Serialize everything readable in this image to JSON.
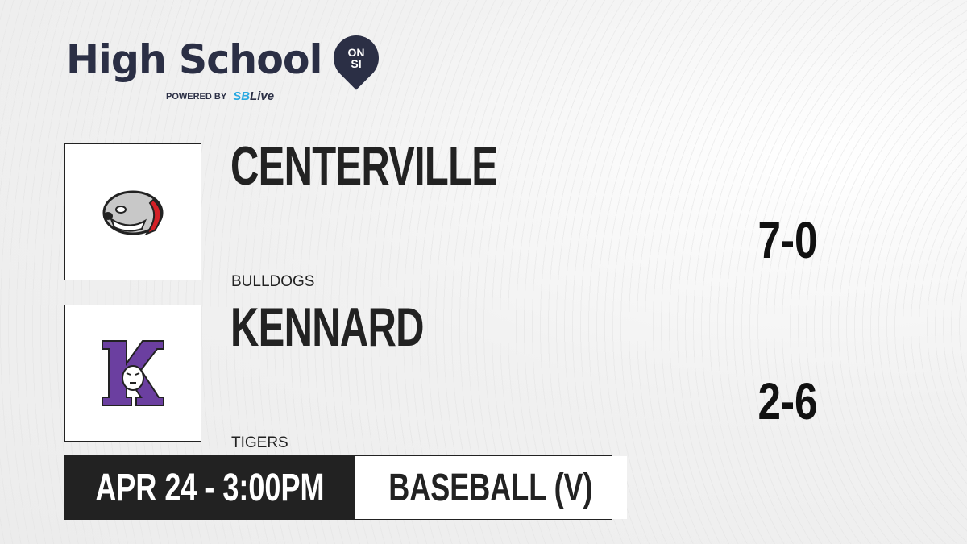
{
  "brand": {
    "title": "High School",
    "pin_top": "ON",
    "pin_bottom": "SI",
    "powered_by": "POWERED BY",
    "partner_a": "SB",
    "partner_b": "Live",
    "accent": "#29a9e1",
    "navy": "#2b2f45"
  },
  "teams": [
    {
      "name": "CENTERVILLE",
      "mascot": "BULLDOGS",
      "record": "7-0",
      "logo_icon": "bulldog-logo"
    },
    {
      "name": "KENNARD",
      "mascot": "TIGERS",
      "record": "2-6",
      "logo_icon": "kennard-k-tiger-logo",
      "logo_color": "#6b3fa0"
    }
  ],
  "game": {
    "datetime": "APR 24 - 3:00PM",
    "sport": "BASEBALL (V)"
  }
}
